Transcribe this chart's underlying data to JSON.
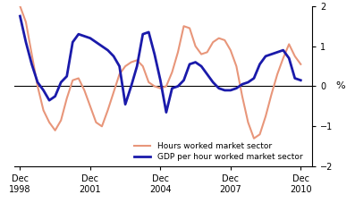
{
  "ylabel_right": "%",
  "ylim": [
    -2,
    2
  ],
  "yticks": [
    -2,
    -1,
    0,
    1,
    2
  ],
  "background_color": "#ffffff",
  "gdp_color": "#1a1aaa",
  "hours_color": "#E8967A",
  "gdp_label": "GDP per hour worked market sector",
  "hours_label": "Hours worked market sector",
  "gdp_linewidth": 2.0,
  "hours_linewidth": 1.5,
  "gdp_data": [
    [
      1998.75,
      1.75
    ],
    [
      1999.0,
      1.1
    ],
    [
      1999.25,
      0.55
    ],
    [
      1999.5,
      0.1
    ],
    [
      1999.75,
      -0.1
    ],
    [
      2000.0,
      -0.35
    ],
    [
      2000.25,
      -0.25
    ],
    [
      2000.5,
      0.1
    ],
    [
      2000.75,
      0.25
    ],
    [
      2001.0,
      1.1
    ],
    [
      2001.25,
      1.3
    ],
    [
      2001.5,
      1.25
    ],
    [
      2001.75,
      1.2
    ],
    [
      2002.0,
      1.1
    ],
    [
      2002.25,
      1.0
    ],
    [
      2002.5,
      0.9
    ],
    [
      2002.75,
      0.75
    ],
    [
      2003.0,
      0.5
    ],
    [
      2003.25,
      -0.45
    ],
    [
      2003.5,
      0.0
    ],
    [
      2003.75,
      0.5
    ],
    [
      2004.0,
      1.3
    ],
    [
      2004.25,
      1.35
    ],
    [
      2004.5,
      0.8
    ],
    [
      2004.75,
      0.15
    ],
    [
      2005.0,
      -0.65
    ],
    [
      2005.25,
      -0.05
    ],
    [
      2005.5,
      0.0
    ],
    [
      2005.75,
      0.15
    ],
    [
      2006.0,
      0.55
    ],
    [
      2006.25,
      0.6
    ],
    [
      2006.5,
      0.5
    ],
    [
      2006.75,
      0.3
    ],
    [
      2007.0,
      0.1
    ],
    [
      2007.25,
      -0.05
    ],
    [
      2007.5,
      -0.1
    ],
    [
      2007.75,
      -0.1
    ],
    [
      2008.0,
      -0.05
    ],
    [
      2008.25,
      0.05
    ],
    [
      2008.5,
      0.1
    ],
    [
      2008.75,
      0.2
    ],
    [
      2009.0,
      0.55
    ],
    [
      2009.25,
      0.75
    ],
    [
      2009.5,
      0.8
    ],
    [
      2009.75,
      0.85
    ],
    [
      2010.0,
      0.9
    ],
    [
      2010.25,
      0.7
    ],
    [
      2010.5,
      0.2
    ],
    [
      2010.75,
      0.15
    ]
  ],
  "hours_data": [
    [
      1998.75,
      2.0
    ],
    [
      1999.0,
      1.6
    ],
    [
      1999.25,
      0.8
    ],
    [
      1999.5,
      0.0
    ],
    [
      1999.75,
      -0.6
    ],
    [
      2000.0,
      -0.9
    ],
    [
      2000.25,
      -1.1
    ],
    [
      2000.5,
      -0.85
    ],
    [
      2000.75,
      -0.3
    ],
    [
      2001.0,
      0.15
    ],
    [
      2001.25,
      0.2
    ],
    [
      2001.5,
      -0.1
    ],
    [
      2001.75,
      -0.5
    ],
    [
      2002.0,
      -0.9
    ],
    [
      2002.25,
      -1.0
    ],
    [
      2002.5,
      -0.6
    ],
    [
      2002.75,
      -0.15
    ],
    [
      2003.0,
      0.3
    ],
    [
      2003.25,
      0.5
    ],
    [
      2003.5,
      0.6
    ],
    [
      2003.75,
      0.65
    ],
    [
      2004.0,
      0.5
    ],
    [
      2004.25,
      0.1
    ],
    [
      2004.5,
      0.0
    ],
    [
      2004.75,
      -0.05
    ],
    [
      2005.0,
      0.0
    ],
    [
      2005.25,
      0.35
    ],
    [
      2005.5,
      0.85
    ],
    [
      2005.75,
      1.5
    ],
    [
      2006.0,
      1.45
    ],
    [
      2006.25,
      1.0
    ],
    [
      2006.5,
      0.8
    ],
    [
      2006.75,
      0.85
    ],
    [
      2007.0,
      1.1
    ],
    [
      2007.25,
      1.2
    ],
    [
      2007.5,
      1.15
    ],
    [
      2007.75,
      0.9
    ],
    [
      2008.0,
      0.5
    ],
    [
      2008.25,
      -0.25
    ],
    [
      2008.5,
      -0.9
    ],
    [
      2008.75,
      -1.3
    ],
    [
      2009.0,
      -1.2
    ],
    [
      2009.25,
      -0.75
    ],
    [
      2009.5,
      -0.2
    ],
    [
      2009.75,
      0.3
    ],
    [
      2010.0,
      0.7
    ],
    [
      2010.25,
      1.05
    ],
    [
      2010.5,
      0.75
    ],
    [
      2010.75,
      0.55
    ]
  ],
  "xtick_positions": [
    1998.75,
    2001.75,
    2004.75,
    2007.75,
    2010.75
  ],
  "xtick_labels": [
    "Dec\n1998",
    "Dec\n2001",
    "Dec\n2004",
    "Dec\n2007",
    "Dec\n2010"
  ],
  "xlim": [
    1998.5,
    2011.25
  ]
}
